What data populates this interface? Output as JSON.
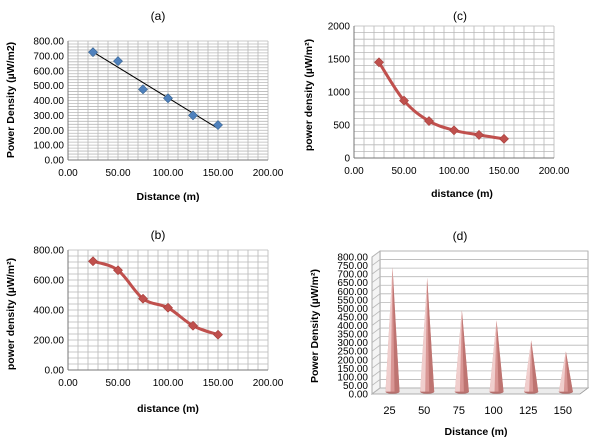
{
  "chart_data": [
    {
      "panel": "(a)",
      "type": "scatter",
      "title": "(a)",
      "xlabel": "Distance (m)",
      "ylabel": "Power Density (µW/m2)",
      "xlim": [
        0,
        200
      ],
      "xstep": 50,
      "ylim": [
        0,
        800
      ],
      "ystep": 100,
      "xtick_labels": [
        "0.00",
        "50.00",
        "100.00",
        "150.00",
        "200.00"
      ],
      "ytick_labels": [
        "0.00",
        "100.00",
        "200.00",
        "300.00",
        "400.00",
        "500.00",
        "600.00",
        "700.00",
        "800.00"
      ],
      "x": [
        25,
        50,
        75,
        100,
        125,
        150
      ],
      "y": [
        725,
        665,
        475,
        415,
        300,
        235
      ],
      "trendline": "linear",
      "marker_color": "#4f81bd",
      "line_color": "#000000"
    },
    {
      "panel": "(b)",
      "type": "line",
      "title": "(b)",
      "xlabel": "distance (m)",
      "ylabel": "power density (µW/m²)",
      "xlim": [
        0,
        200
      ],
      "xstep": 50,
      "ylim": [
        0,
        800
      ],
      "ystep": 200,
      "xtick_labels": [
        "0.00",
        "50.00",
        "100.00",
        "150.00",
        "200.00"
      ],
      "ytick_labels": [
        "0.00",
        "200.00",
        "400.00",
        "600.00",
        "800.00"
      ],
      "x": [
        25,
        50,
        75,
        100,
        125,
        150
      ],
      "y": [
        725,
        665,
        475,
        415,
        295,
        235
      ],
      "line_color": "#c0504d"
    },
    {
      "panel": "(c)",
      "type": "line",
      "title": "(c)",
      "xlabel": "distance (m)",
      "ylabel": "power density (µW/m²)",
      "xlim": [
        0,
        200
      ],
      "xstep": 50,
      "ylim": [
        0,
        2000
      ],
      "ystep": 500,
      "xtick_labels": [
        "0.00",
        "50.00",
        "100.00",
        "150.00",
        "200.00"
      ],
      "ytick_labels": [
        "0",
        "500",
        "1000",
        "1500",
        "2000"
      ],
      "x": [
        25,
        50,
        75,
        100,
        125,
        150
      ],
      "y": [
        1450,
        870,
        560,
        420,
        350,
        290
      ],
      "line_color": "#c0504d"
    },
    {
      "panel": "(d)",
      "type": "bar",
      "style": "3d-cone",
      "title": "(d)",
      "xlabel": "Distance (m)",
      "ylabel": "Power Density (µW/m²)",
      "categories": [
        "25",
        "50",
        "75",
        "100",
        "125",
        "150"
      ],
      "values": [
        725,
        665,
        475,
        415,
        300,
        235
      ],
      "ylim": [
        0,
        800
      ],
      "ystep": 50,
      "ytick_labels": [
        "0.00",
        "50.00",
        "100.00",
        "150.00",
        "200.00",
        "250.00",
        "300.00",
        "350.00",
        "400.00",
        "450.00",
        "500.00",
        "550.00",
        "600.00",
        "650.00",
        "700.00",
        "750.00",
        "800.00"
      ],
      "bar_color": "#d99694"
    }
  ]
}
